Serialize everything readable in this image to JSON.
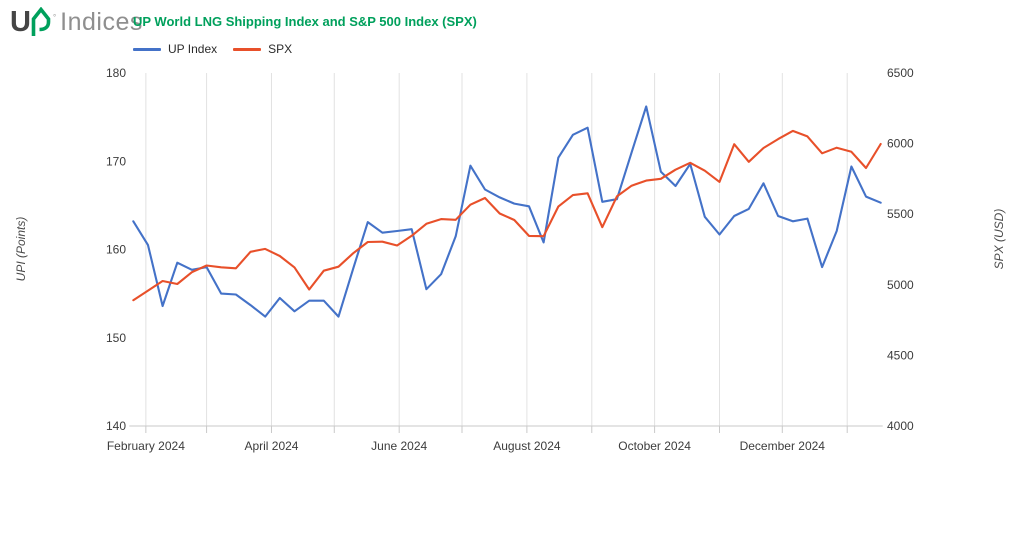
{
  "brand": {
    "logo_up": "U",
    "logo_reg": "°",
    "logo_suffix": "Indices",
    "green": "#00A05C",
    "dark": "#454545",
    "gray": "#8f8f8f"
  },
  "header": {
    "title": "UP World LNG Shipping Index and S&P 500 Index (SPX)",
    "title_color": "#00A05C"
  },
  "legend": [
    {
      "label": "UP Index",
      "color": "#4472C8"
    },
    {
      "label": "SPX",
      "color": "#E8502A"
    }
  ],
  "chart_data": {
    "type": "line",
    "title": "UP World LNG Shipping Index and S&P 500 Index (SPX)",
    "grid": "vertical-months-only",
    "legend_position": "top-left-under-title",
    "x": [
      "2024-01-26",
      "2024-02-02",
      "2024-02-09",
      "2024-02-16",
      "2024-02-23",
      "2024-03-01",
      "2024-03-08",
      "2024-03-15",
      "2024-03-22",
      "2024-03-29",
      "2024-04-05",
      "2024-04-12",
      "2024-04-19",
      "2024-04-26",
      "2024-05-03",
      "2024-05-10",
      "2024-05-17",
      "2024-05-24",
      "2024-05-31",
      "2024-06-07",
      "2024-06-14",
      "2024-06-21",
      "2024-06-28",
      "2024-07-05",
      "2024-07-12",
      "2024-07-19",
      "2024-07-26",
      "2024-08-02",
      "2024-08-09",
      "2024-08-16",
      "2024-08-23",
      "2024-08-30",
      "2024-09-06",
      "2024-09-13",
      "2024-09-20",
      "2024-09-27",
      "2024-10-04",
      "2024-10-11",
      "2024-10-18",
      "2024-10-25",
      "2024-11-01",
      "2024-11-08",
      "2024-11-15",
      "2024-11-22",
      "2024-11-29",
      "2024-12-06",
      "2024-12-13",
      "2024-12-20",
      "2024-12-27",
      "2025-01-03",
      "2025-01-10",
      "2025-01-17"
    ],
    "series": [
      {
        "name": "UP Index",
        "axis": "left",
        "color": "#4472C8",
        "values": [
          163.2,
          160.5,
          153.6,
          158.5,
          157.7,
          158.0,
          155.0,
          154.9,
          153.7,
          152.4,
          154.5,
          153.0,
          154.2,
          154.2,
          152.4,
          157.8,
          163.1,
          161.9,
          162.1,
          162.3,
          155.5,
          157.2,
          161.5,
          169.5,
          166.8,
          165.9,
          165.2,
          164.9,
          160.8,
          170.4,
          173.0,
          173.8,
          165.4,
          165.7,
          171.0,
          176.2,
          168.8,
          167.2,
          169.7,
          163.7,
          161.7,
          163.8,
          164.6,
          167.5,
          163.8,
          163.2,
          163.5,
          158.0,
          162.1,
          169.4,
          166.0,
          165.3
        ]
      },
      {
        "name": "SPX",
        "axis": "right",
        "color": "#E8502A",
        "values": [
          4891,
          4959,
          5027,
          5006,
          5089,
          5137,
          5124,
          5117,
          5234,
          5254,
          5204,
          5123,
          4967,
          5100,
          5128,
          5223,
          5303,
          5305,
          5278,
          5347,
          5432,
          5465,
          5460,
          5567,
          5615,
          5505,
          5459,
          5346,
          5344,
          5554,
          5635,
          5648,
          5408,
          5626,
          5702,
          5738,
          5751,
          5815,
          5864,
          5808,
          5729,
          5996,
          5871,
          5969,
          6032,
          6090,
          6051,
          5931,
          5971,
          5942,
          5827,
          5997
        ]
      }
    ],
    "left_axis": {
      "label": "UPI (Points)",
      "min": 140,
      "max": 180,
      "ticks": [
        180,
        170,
        160,
        150,
        140
      ]
    },
    "right_axis": {
      "label": "SPX (USD)",
      "min": 4000,
      "max": 6500,
      "ticks": [
        6500,
        6000,
        5500,
        5000,
        4500,
        4000
      ]
    },
    "x_axis": {
      "months": [
        {
          "date": "2024-02-01",
          "label": "February 2024"
        },
        {
          "date": "2024-03-01",
          "label": ""
        },
        {
          "date": "2024-04-01",
          "label": "April 2024"
        },
        {
          "date": "2024-05-01",
          "label": ""
        },
        {
          "date": "2024-06-01",
          "label": "June 2024"
        },
        {
          "date": "2024-07-01",
          "label": ""
        },
        {
          "date": "2024-08-01",
          "label": "August 2024"
        },
        {
          "date": "2024-09-01",
          "label": ""
        },
        {
          "date": "2024-10-01",
          "label": "October 2024"
        },
        {
          "date": "2024-11-01",
          "label": ""
        },
        {
          "date": "2024-12-01",
          "label": "December 2024"
        },
        {
          "date": "2025-01-01",
          "label": ""
        }
      ]
    }
  }
}
